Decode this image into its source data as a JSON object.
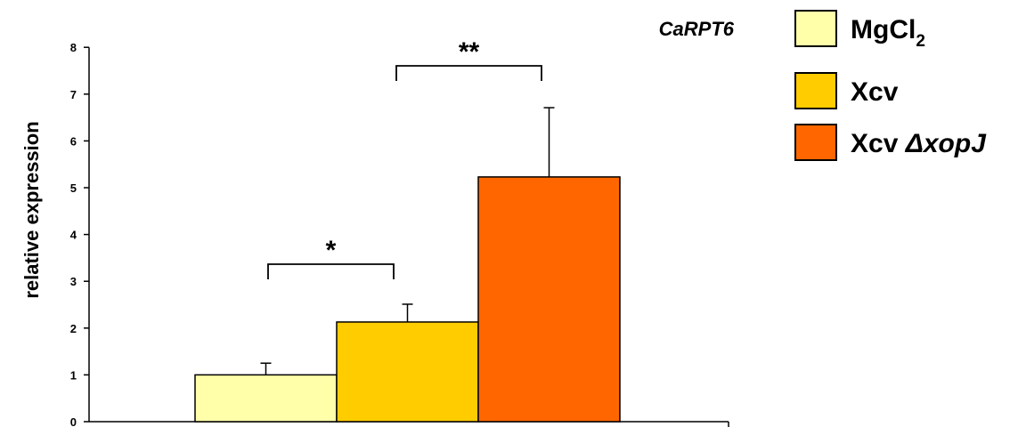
{
  "chart_data": {
    "type": "bar",
    "title": "CaRPT6",
    "ylabel": "relative expression",
    "xlabel": "",
    "ylim": [
      0,
      8
    ],
    "yticks": [
      0,
      1,
      2,
      3,
      4,
      5,
      6,
      7,
      8
    ],
    "grid": false,
    "legend_placement": "top-right",
    "categories": [
      "MgCl2",
      "Xcv",
      "Xcv ΔxopJ"
    ],
    "series": [
      {
        "values": [
          1.0,
          2.13,
          5.23
        ],
        "errors": [
          0.25,
          0.38,
          1.48
        ],
        "colors": [
          "#FFFFAA",
          "#FFCC00",
          "#FF6600"
        ]
      }
    ],
    "legend": [
      {
        "main": "MgCl",
        "sub": "2",
        "italic_part": "",
        "color": "#FFFFAA"
      },
      {
        "main": "Xcv",
        "sub": "",
        "italic_part": "",
        "color": "#FFCC00"
      },
      {
        "main": "Xcv ",
        "sub": "",
        "italic_part": "ΔxopJ",
        "color": "#FF6600"
      }
    ],
    "significance": [
      {
        "from": 0,
        "to": 1,
        "label": "*"
      },
      {
        "from": 1,
        "to": 2,
        "label": "**"
      }
    ]
  }
}
